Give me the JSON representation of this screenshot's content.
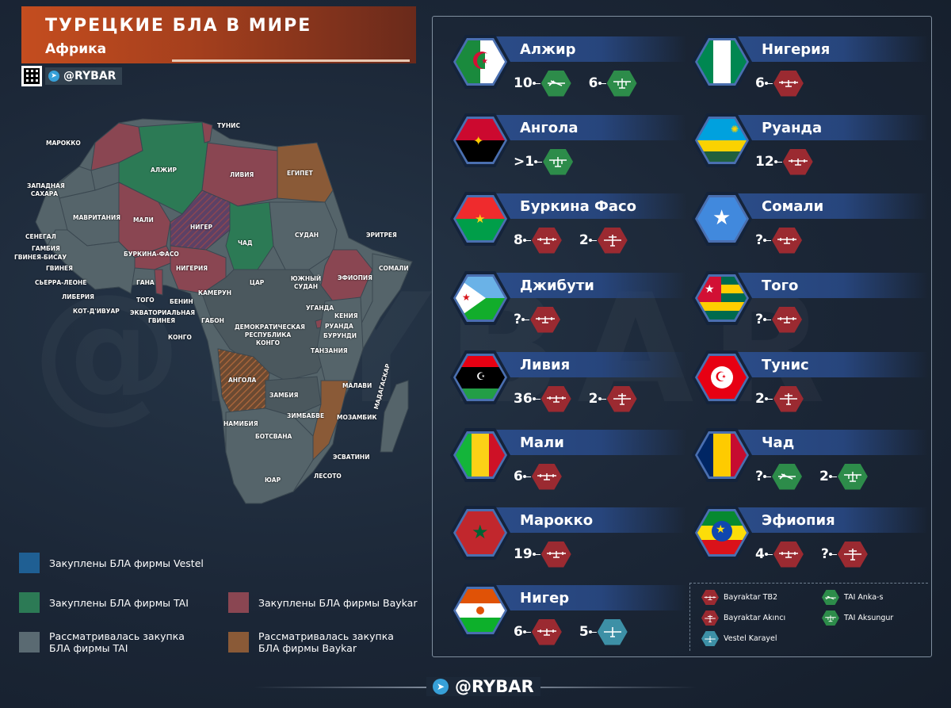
{
  "header": {
    "title": "ТУРЕЦКИЕ БЛА В МИРЕ",
    "subtitle": "Африка",
    "brand": "@RYBAR"
  },
  "watermark": "@RYBAR",
  "colors": {
    "vestel": "#1f5f93",
    "tai": "#2c7a55",
    "baykar": "#8a4652",
    "tai_considered": "#5a6a72",
    "baykar_considered": "#8a5a37",
    "tb2": "#9b2a31",
    "anka": "#2d8c4a",
    "karayel": "#3d90a6"
  },
  "map": {
    "labels": {
      "tunisia": "ТУНИС",
      "morocco": "МАРОККО",
      "algeria": "АЛЖИР",
      "libya": "ЛИВИЯ",
      "egypt": "ЕГИПЕТ",
      "western_sahara": "ЗАПАДНАЯ САХАРА",
      "mauritania": "МАВРИТАНИЯ",
      "mali": "МАЛИ",
      "niger": "НИГЕР",
      "chad": "ЧАД",
      "sudan": "СУДАН",
      "eritrea": "ЭРИТРЕЯ",
      "senegal": "СЕНЕГАЛ",
      "gambia": "ГАМБИЯ",
      "guinea_bissau": "ГВИНЕЯ-БИСАУ",
      "guinea": "ГВИНЕЯ",
      "sierra_leone": "СЬЕРРА-ЛЕОНЕ",
      "liberia": "ЛИБЕРИЯ",
      "ivory_coast": "КОТ-Д'ИВУАР",
      "burkina": "БУРКИНА-ФАСО",
      "ghana": "ГАНА",
      "togo": "ТОГО",
      "benin": "БЕНИН",
      "nigeria": "НИГЕРИЯ",
      "cameroon": "КАМЕРУН",
      "car": "ЦАР",
      "south_sudan": "ЮЖНЫЙ СУДАН",
      "ethiopia": "ЭФИОПИЯ",
      "somalia": "СОМАЛИ",
      "eq_guinea": "ЭКВАТОРИАЛЬНАЯ ГВИНЕЯ",
      "gabon": "ГАБОН",
      "congo": "КОНГО",
      "drc": "ДЕМОКРАТИЧЕСКАЯ РЕСПУБЛИКА КОНГО",
      "uganda": "УГАНДА",
      "kenya": "КЕНИЯ",
      "rwanda": "РУАНДА",
      "burundi": "БУРУНДИ",
      "tanzania": "ТАНЗАНИЯ",
      "angola": "АНГОЛА",
      "zambia": "ЗАМБИЯ",
      "malawi": "МАЛАВИ",
      "mozambique": "МОЗАМБИК",
      "madagascar": "МАДАГАСКАР",
      "zimbabwe": "ЗИМБАБВЕ",
      "namibia": "НАМИБИЯ",
      "botswana": "БОТСВАНА",
      "eswatini": "ЭСВАТИНИ",
      "lesotho": "ЛЕСОТО",
      "south_africa": "ЮАР"
    }
  },
  "legend": [
    {
      "text": "Закуплены БЛА фирмы Vestel",
      "color": "#1f5f93"
    },
    {
      "text": "Закуплены БЛА фирмы TAI",
      "color": "#2c7a55"
    },
    {
      "text": "Закуплены БЛА фирмы Baykar",
      "color": "#8a4652"
    },
    {
      "text": "Рассматривалась закупка БЛА фирмы TAI",
      "color": "#5a6a72"
    },
    {
      "text": "Рассматривалась закупка БЛА фирмы Baykar",
      "color": "#8a5a37"
    }
  ],
  "countries": [
    {
      "name": "Алжир",
      "flag": "algeria",
      "drones": [
        {
          "count": "10",
          "type": "anka"
        },
        {
          "count": "6",
          "type": "aksungur"
        }
      ]
    },
    {
      "name": "Нигерия",
      "flag": "nigeria",
      "drones": [
        {
          "count": "6",
          "type": "tb2"
        }
      ]
    },
    {
      "name": "Ангола",
      "flag": "angola",
      "drones": [
        {
          "count": ">1",
          "type": "aksungur"
        }
      ]
    },
    {
      "name": "Руанда",
      "flag": "rwanda",
      "drones": [
        {
          "count": "12",
          "type": "tb2"
        }
      ]
    },
    {
      "name": "Буркина Фасо",
      "flag": "burkina",
      "drones": [
        {
          "count": "8",
          "type": "tb2"
        },
        {
          "count": "2",
          "type": "akinci"
        }
      ]
    },
    {
      "name": "Сомали",
      "flag": "somalia",
      "drones": [
        {
          "count": "?",
          "type": "tb2"
        }
      ]
    },
    {
      "name": "Джибути",
      "flag": "djibouti",
      "drones": [
        {
          "count": "?",
          "type": "tb2"
        }
      ]
    },
    {
      "name": "Того",
      "flag": "togo",
      "drones": [
        {
          "count": "?",
          "type": "tb2"
        }
      ]
    },
    {
      "name": "Ливия",
      "flag": "libya",
      "drones": [
        {
          "count": "36",
          "type": "tb2"
        },
        {
          "count": "2",
          "type": "akinci"
        }
      ]
    },
    {
      "name": "Тунис",
      "flag": "tunisia",
      "drones": [
        {
          "count": "2",
          "type": "akinci"
        }
      ]
    },
    {
      "name": "Мали",
      "flag": "mali",
      "drones": [
        {
          "count": "6",
          "type": "tb2"
        }
      ]
    },
    {
      "name": "Чад",
      "flag": "chad",
      "drones": [
        {
          "count": "?",
          "type": "anka"
        },
        {
          "count": "2",
          "type": "aksungur"
        }
      ]
    },
    {
      "name": "Марокко",
      "flag": "morocco",
      "drones": [
        {
          "count": "19",
          "type": "tb2"
        }
      ]
    },
    {
      "name": "Эфиопия",
      "flag": "ethiopia",
      "drones": [
        {
          "count": "4",
          "type": "tb2"
        },
        {
          "count": "?",
          "type": "akinci"
        }
      ]
    },
    {
      "name": "Нигер",
      "flag": "niger",
      "drones": [
        {
          "count": "6",
          "type": "tb2"
        },
        {
          "count": "5",
          "type": "karayel"
        }
      ]
    }
  ],
  "drone_legend": [
    {
      "label": "Bayraktar TB2",
      "type": "tb2"
    },
    {
      "label": "TAI Anka-s",
      "type": "anka"
    },
    {
      "label": "Bayraktar Akıncı",
      "type": "akinci"
    },
    {
      "label": "TAI Aksungur",
      "type": "aksungur"
    },
    {
      "label": "Vestel Karayel",
      "type": "karayel"
    }
  ],
  "footer": {
    "brand": "@RYBAR"
  }
}
